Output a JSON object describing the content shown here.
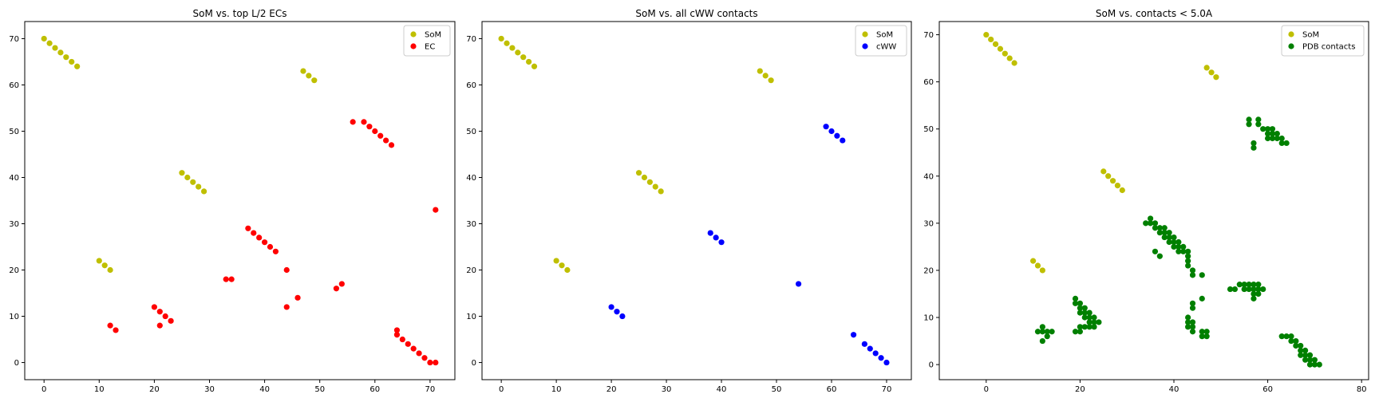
{
  "chart_data": [
    {
      "type": "scatter",
      "title": "SoM vs. top L/2 ECs",
      "xlim": [
        -3.5,
        74.5
      ],
      "ylim": [
        -3.7,
        73.7
      ],
      "xticks": [
        0,
        10,
        20,
        30,
        40,
        50,
        60,
        70
      ],
      "yticks": [
        0,
        10,
        20,
        30,
        40,
        50,
        60,
        70
      ],
      "legend": "top-right",
      "series": [
        {
          "name": "SoM",
          "color": "#bfbf00",
          "points": [
            [
              0,
              70
            ],
            [
              1,
              69
            ],
            [
              2,
              68
            ],
            [
              3,
              67
            ],
            [
              4,
              66
            ],
            [
              5,
              65
            ],
            [
              6,
              64
            ],
            [
              47,
              63
            ],
            [
              48,
              62
            ],
            [
              49,
              61
            ],
            [
              25,
              41
            ],
            [
              26,
              40
            ],
            [
              27,
              39
            ],
            [
              28,
              38
            ],
            [
              29,
              37
            ],
            [
              10,
              22
            ],
            [
              11,
              21
            ],
            [
              12,
              20
            ]
          ]
        },
        {
          "name": "EC",
          "color": "#ff0000",
          "points": [
            [
              56,
              52
            ],
            [
              58,
              52
            ],
            [
              59,
              51
            ],
            [
              60,
              50
            ],
            [
              61,
              49
            ],
            [
              62,
              48
            ],
            [
              63,
              47
            ],
            [
              71,
              33
            ],
            [
              37,
              29
            ],
            [
              38,
              28
            ],
            [
              39,
              27
            ],
            [
              40,
              26
            ],
            [
              41,
              25
            ],
            [
              42,
              24
            ],
            [
              44,
              20
            ],
            [
              33,
              18
            ],
            [
              34,
              18
            ],
            [
              54,
              17
            ],
            [
              53,
              16
            ],
            [
              46,
              14
            ],
            [
              44,
              12
            ],
            [
              20,
              12
            ],
            [
              21,
              11
            ],
            [
              22,
              10
            ],
            [
              23,
              9
            ],
            [
              21,
              8
            ],
            [
              12,
              8
            ],
            [
              13,
              7
            ],
            [
              64,
              7
            ],
            [
              64,
              6
            ],
            [
              65,
              5
            ],
            [
              66,
              4
            ],
            [
              67,
              3
            ],
            [
              68,
              2
            ],
            [
              69,
              1
            ],
            [
              70,
              0
            ],
            [
              71,
              0
            ]
          ]
        }
      ]
    },
    {
      "type": "scatter",
      "title": "SoM vs. all cWW contacts",
      "xlim": [
        -3.5,
        74.5
      ],
      "ylim": [
        -3.7,
        73.7
      ],
      "xticks": [
        0,
        10,
        20,
        30,
        40,
        50,
        60,
        70
      ],
      "yticks": [
        0,
        10,
        20,
        30,
        40,
        50,
        60,
        70
      ],
      "legend": "top-right",
      "series": [
        {
          "name": "SoM",
          "color": "#bfbf00",
          "points": [
            [
              0,
              70
            ],
            [
              1,
              69
            ],
            [
              2,
              68
            ],
            [
              3,
              67
            ],
            [
              4,
              66
            ],
            [
              5,
              65
            ],
            [
              6,
              64
            ],
            [
              47,
              63
            ],
            [
              48,
              62
            ],
            [
              49,
              61
            ],
            [
              25,
              41
            ],
            [
              26,
              40
            ],
            [
              27,
              39
            ],
            [
              28,
              38
            ],
            [
              29,
              37
            ],
            [
              10,
              22
            ],
            [
              11,
              21
            ],
            [
              12,
              20
            ]
          ]
        },
        {
          "name": "cWW",
          "color": "#0000ff",
          "points": [
            [
              59,
              51
            ],
            [
              60,
              50
            ],
            [
              61,
              49
            ],
            [
              62,
              48
            ],
            [
              38,
              28
            ],
            [
              39,
              27
            ],
            [
              40,
              26
            ],
            [
              54,
              17
            ],
            [
              20,
              12
            ],
            [
              21,
              11
            ],
            [
              22,
              10
            ],
            [
              64,
              6
            ],
            [
              66,
              4
            ],
            [
              67,
              3
            ],
            [
              68,
              2
            ],
            [
              69,
              1
            ],
            [
              70,
              0
            ]
          ]
        }
      ]
    },
    {
      "type": "scatter",
      "title": "SoM vs. contacts < 5.0A",
      "xlim": [
        -10,
        81.5
      ],
      "ylim": [
        -3.2,
        72.8
      ],
      "xticks": [
        0,
        20,
        40,
        60,
        80
      ],
      "yticks": [
        0,
        10,
        20,
        30,
        40,
        50,
        60,
        70
      ],
      "legend": "top-right",
      "series": [
        {
          "name": "SoM",
          "color": "#bfbf00",
          "points": [
            [
              0,
              70
            ],
            [
              1,
              69
            ],
            [
              2,
              68
            ],
            [
              3,
              67
            ],
            [
              4,
              66
            ],
            [
              5,
              65
            ],
            [
              6,
              64
            ],
            [
              47,
              63
            ],
            [
              48,
              62
            ],
            [
              49,
              61
            ],
            [
              25,
              41
            ],
            [
              26,
              40
            ],
            [
              27,
              39
            ],
            [
              28,
              38
            ],
            [
              29,
              37
            ],
            [
              10,
              22
            ],
            [
              11,
              21
            ],
            [
              12,
              20
            ]
          ]
        },
        {
          "name": "PDB contacts",
          "color": "#008000",
          "points": [
            [
              56,
              52
            ],
            [
              56,
              51
            ],
            [
              58,
              52
            ],
            [
              58,
              51
            ],
            [
              59,
              50
            ],
            [
              60,
              50
            ],
            [
              60,
              49
            ],
            [
              61,
              50
            ],
            [
              61,
              49
            ],
            [
              60,
              48
            ],
            [
              61,
              48
            ],
            [
              62,
              49
            ],
            [
              62,
              48
            ],
            [
              63,
              48
            ],
            [
              63,
              47
            ],
            [
              64,
              47
            ],
            [
              57,
              47
            ],
            [
              57,
              46
            ],
            [
              34,
              30
            ],
            [
              35,
              31
            ],
            [
              35,
              30
            ],
            [
              36,
              30
            ],
            [
              36,
              29
            ],
            [
              37,
              29
            ],
            [
              37,
              28
            ],
            [
              38,
              29
            ],
            [
              38,
              28
            ],
            [
              38,
              27
            ],
            [
              39,
              28
            ],
            [
              39,
              27
            ],
            [
              39,
              26
            ],
            [
              40,
              27
            ],
            [
              40,
              26
            ],
            [
              40,
              25
            ],
            [
              41,
              26
            ],
            [
              41,
              25
            ],
            [
              41,
              24
            ],
            [
              42,
              25
            ],
            [
              42,
              24
            ],
            [
              43,
              24
            ],
            [
              43,
              23
            ],
            [
              43,
              22
            ],
            [
              43,
              21
            ],
            [
              44,
              20
            ],
            [
              44,
              19
            ],
            [
              46,
              19
            ],
            [
              36,
              24
            ],
            [
              37,
              23
            ],
            [
              44,
              13
            ],
            [
              44,
              12
            ],
            [
              46,
              14
            ],
            [
              43,
              10
            ],
            [
              43,
              9
            ],
            [
              43,
              8
            ],
            [
              44,
              9
            ],
            [
              44,
              8
            ],
            [
              44,
              7
            ],
            [
              46,
              7
            ],
            [
              46,
              6
            ],
            [
              47,
              7
            ],
            [
              47,
              6
            ],
            [
              52,
              16
            ],
            [
              53,
              16
            ],
            [
              54,
              17
            ],
            [
              55,
              17
            ],
            [
              55,
              16
            ],
            [
              56,
              16
            ],
            [
              56,
              17
            ],
            [
              57,
              17
            ],
            [
              57,
              16
            ],
            [
              57,
              15
            ],
            [
              58,
              17
            ],
            [
              58,
              16
            ],
            [
              58,
              15
            ],
            [
              57,
              14
            ],
            [
              59,
              16
            ],
            [
              19,
              14
            ],
            [
              19,
              13
            ],
            [
              20,
              13
            ],
            [
              20,
              12
            ],
            [
              20,
              11
            ],
            [
              21,
              12
            ],
            [
              21,
              11
            ],
            [
              21,
              10
            ],
            [
              22,
              11
            ],
            [
              22,
              10
            ],
            [
              22,
              9
            ],
            [
              23,
              10
            ],
            [
              23,
              9
            ],
            [
              23,
              8
            ],
            [
              24,
              9
            ],
            [
              22,
              8
            ],
            [
              20,
              8
            ],
            [
              21,
              8
            ],
            [
              19,
              7
            ],
            [
              20,
              7
            ],
            [
              11,
              7
            ],
            [
              12,
              8
            ],
            [
              12,
              7
            ],
            [
              13,
              7
            ],
            [
              13,
              6
            ],
            [
              14,
              7
            ],
            [
              12,
              5
            ],
            [
              63,
              6
            ],
            [
              64,
              6
            ],
            [
              65,
              6
            ],
            [
              65,
              5
            ],
            [
              66,
              5
            ],
            [
              66,
              4
            ],
            [
              67,
              4
            ],
            [
              67,
              3
            ],
            [
              67,
              2
            ],
            [
              68,
              3
            ],
            [
              68,
              2
            ],
            [
              68,
              1
            ],
            [
              69,
              2
            ],
            [
              69,
              1
            ],
            [
              69,
              0
            ],
            [
              70,
              1
            ],
            [
              70,
              0
            ],
            [
              71,
              0
            ]
          ]
        }
      ]
    }
  ]
}
